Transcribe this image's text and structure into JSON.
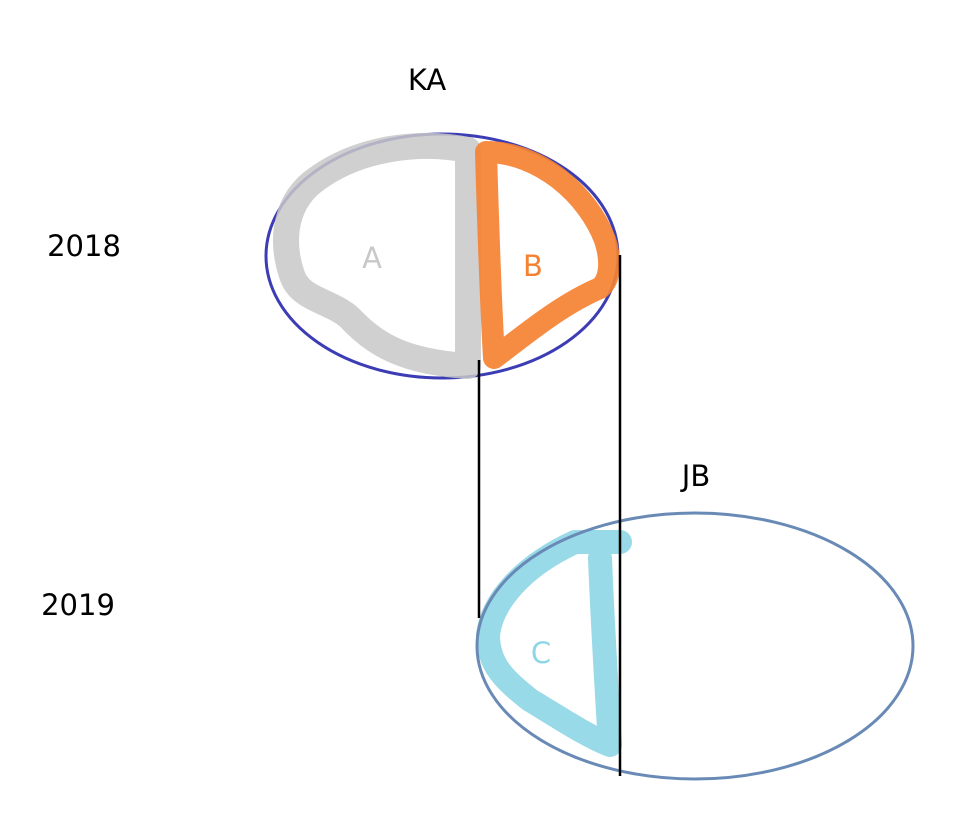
{
  "groups": {
    "top": {
      "label": "KA",
      "year": "2018"
    },
    "bottom": {
      "label": "JB",
      "year": "2019"
    }
  },
  "regions": {
    "a": {
      "label": "A",
      "color": "#c8c8c8"
    },
    "b": {
      "label": "B",
      "color": "#f58232"
    },
    "c": {
      "label": "C",
      "color": "#8ed6e6"
    }
  },
  "colors": {
    "ka_outline": "#3c3cb4",
    "jb_outline": "#6a8ab6",
    "connector": "#000000"
  }
}
